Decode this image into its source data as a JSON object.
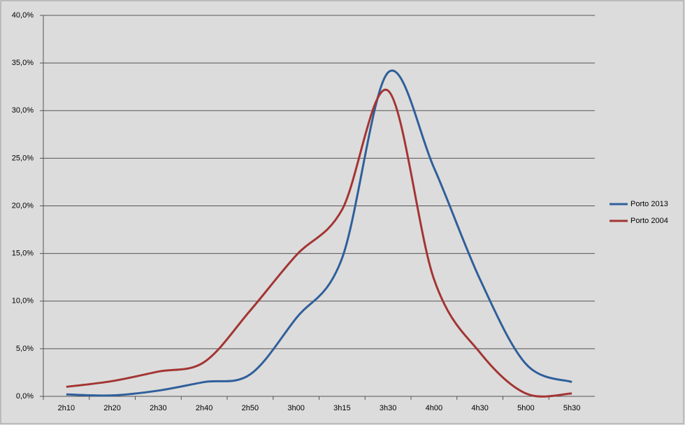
{
  "chart_data": {
    "type": "line",
    "categories": [
      "2h10",
      "2h20",
      "2h30",
      "2h40",
      "2h50",
      "3h00",
      "3h15",
      "3h30",
      "4h00",
      "4h30",
      "5h00",
      "5h30"
    ],
    "series": [
      {
        "name": "Porto 2013",
        "color": "#2f5f9a",
        "values": [
          0.2,
          0.1,
          0.6,
          1.5,
          2.3,
          8.2,
          14.5,
          34.0,
          24.0,
          12.3,
          3.4,
          1.5
        ]
      },
      {
        "name": "Porto 2004",
        "color": "#a33533",
        "values": [
          1.0,
          1.6,
          2.6,
          3.6,
          9.0,
          14.8,
          19.6,
          32.1,
          12.3,
          4.6,
          0.3,
          0.3
        ]
      }
    ],
    "ylim": [
      0,
      40
    ],
    "yticks": [
      {
        "value": 0,
        "label": "0,0%"
      },
      {
        "value": 5,
        "label": "5,0%"
      },
      {
        "value": 10,
        "label": "10,0%"
      },
      {
        "value": 15,
        "label": "15,0%"
      },
      {
        "value": 20,
        "label": "20,0%"
      },
      {
        "value": 25,
        "label": "25,0%"
      },
      {
        "value": 30,
        "label": "30,0%"
      },
      {
        "value": 35,
        "label": "35,0%"
      },
      {
        "value": 40,
        "label": "40,0%"
      }
    ],
    "grid": true,
    "smooth": true,
    "legend": "right"
  }
}
